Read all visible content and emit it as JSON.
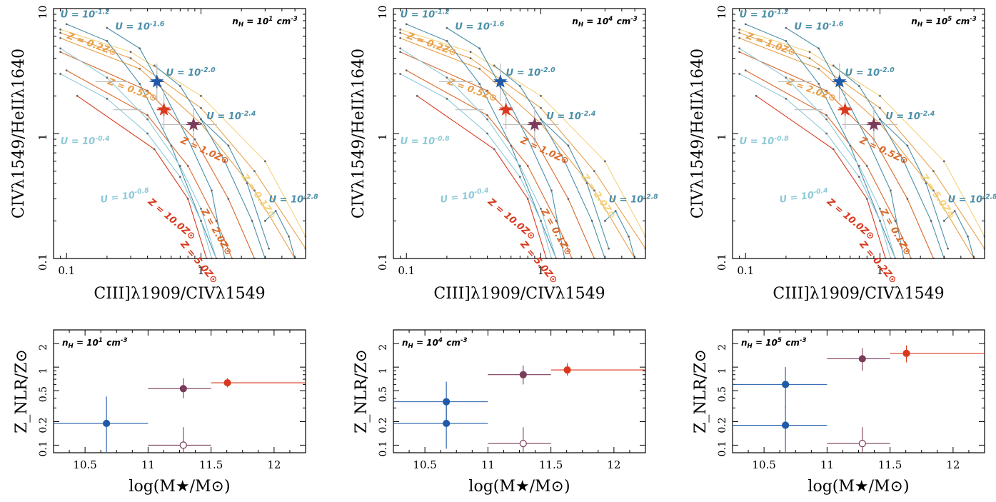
{
  "colors": {
    "blue": "#1f5aa8",
    "red": "#d93a1f",
    "purple": "#7a3c5a",
    "teal": "#4a8fa8",
    "lightteal": "#8ec9d8",
    "orange": "#e8a04a",
    "yellow": "#f5d27a",
    "darkorange": "#d8692a"
  },
  "chart_data": [
    {
      "type": "line",
      "panel": "top-left",
      "density_label": "n_H = 10^1 cm^-3",
      "xlabel": "CIII]λ1909/CIVλ1549",
      "ylabel": "CIVλ1549/HeIIλ1640",
      "xscale": "log",
      "yscale": "log",
      "xlim": [
        0.08,
        6
      ],
      "ylim": [
        0.1,
        10
      ],
      "xticks": [
        "0.1",
        "1"
      ],
      "yticks": [
        "0.1",
        "1",
        "10"
      ],
      "annotations": [
        "U = 10^-1.2",
        "U = 10^-1.6",
        "U = 10^-2.0",
        "U = 10^-2.4",
        "U = 10^-0.4",
        "U = 10^-0.8",
        "U = 10^-2.8",
        "Z = 0.2Z⊙",
        "Z = 0.5Z⊙",
        "Z = 1.0Z⊙",
        "Z = 0.1Z⊙",
        "Z = 10.0Z⊙",
        "Z = 5.0Z⊙",
        "Z = 2.0Z⊙"
      ],
      "points": [
        {
          "name": "blue",
          "x": 0.47,
          "y": 2.6
        },
        {
          "name": "red",
          "x": 0.53,
          "y": 1.55
        },
        {
          "name": "purple",
          "x": 0.88,
          "y": 1.18
        }
      ]
    },
    {
      "type": "line",
      "panel": "top-middle",
      "density_label": "n_H = 10^4 cm^-3",
      "xlabel": "CIII]λ1909/CIVλ1549",
      "ylabel": "CIVλ1549/HeIIλ1640",
      "xscale": "log",
      "yscale": "log",
      "xlim": [
        0.08,
        6
      ],
      "ylim": [
        0.1,
        10
      ],
      "xticks": [
        "0.1",
        "1"
      ],
      "yticks": [
        "0.1",
        "1",
        "10"
      ],
      "annotations": [
        "U = 10^-1.2",
        "U = 10^-1.6",
        "U = 10^-2.0",
        "U = 10^-2.4",
        "U = 10^-0.8",
        "U = 10^-0.4",
        "U = 10^-2.8",
        "Z = 0.2Z⊙",
        "Z = 0.5Z⊙",
        "Z = 1.0Z⊙",
        "Z = 2.0Z⊙",
        "Z = 10.0Z⊙",
        "Z = 5.0Z⊙",
        "Z = 0.1Z⊙"
      ],
      "points": [
        {
          "name": "blue",
          "x": 0.5,
          "y": 2.6
        },
        {
          "name": "red",
          "x": 0.55,
          "y": 1.55
        },
        {
          "name": "purple",
          "x": 0.9,
          "y": 1.18
        }
      ]
    },
    {
      "type": "line",
      "panel": "top-right",
      "density_label": "n_H = 10^5 cm^-3",
      "xlabel": "CIII]λ1909/CIVλ1549",
      "ylabel": "CIVλ1549/HeIIλ1640",
      "xscale": "log",
      "yscale": "log",
      "xlim": [
        0.08,
        6
      ],
      "ylim": [
        0.1,
        10
      ],
      "xticks": [
        "0.1",
        "1"
      ],
      "yticks": [
        "0.1",
        "1",
        "10"
      ],
      "annotations": [
        "U = 10^-1.2",
        "U = 10^-1.6",
        "U = 10^-2.0",
        "U = 10^-2.4",
        "U = 10^-0.8",
        "U = 10^-0.4",
        "U = 10^-2.8",
        "Z = 1.0Z⊙",
        "Z = 2.0Z⊙",
        "Z = 0.5Z⊙",
        "Z = 5.0Z⊙",
        "Z = 10.0Z⊙",
        "Z = 0.2Z⊙",
        "Z = 0.1Z⊙"
      ],
      "points": [
        {
          "name": "blue",
          "x": 0.5,
          "y": 2.6
        },
        {
          "name": "red",
          "x": 0.55,
          "y": 1.55
        },
        {
          "name": "purple",
          "x": 0.9,
          "y": 1.18
        }
      ]
    },
    {
      "type": "scatter",
      "panel": "bottom-left",
      "density_label": "n_H = 10^1 cm^-3",
      "xlabel": "log(M★/M⊙)",
      "ylabel": "Z_NLR/Z⊙",
      "yscale": "log",
      "xlim": [
        10.25,
        12.25
      ],
      "ylim": [
        0.08,
        3
      ],
      "xticks": [
        "10.5",
        "11",
        "11.5",
        "12"
      ],
      "yticks": [
        "0.1",
        "0.2",
        "0.5",
        "1",
        "2"
      ],
      "points": [
        {
          "name": "blue",
          "x": 10.67,
          "y": 0.19,
          "xerr": [
            10.25,
            11.0
          ],
          "yerr": [
            0.08,
            0.42
          ],
          "filled": true
        },
        {
          "name": "purple",
          "x": 11.28,
          "y": 0.53,
          "xerr": [
            11.0,
            11.5
          ],
          "yerr": [
            0.4,
            0.72
          ],
          "filled": true
        },
        {
          "name": "purple-open",
          "x": 11.28,
          "y": 0.1,
          "xerr": [
            11.0,
            11.5
          ],
          "yerr": [
            0.08,
            0.17
          ],
          "filled": false
        },
        {
          "name": "red",
          "x": 11.63,
          "y": 0.63,
          "xerr": [
            11.5,
            12.25
          ],
          "yerr": [
            0.55,
            0.72
          ],
          "filled": true
        }
      ]
    },
    {
      "type": "scatter",
      "panel": "bottom-middle",
      "density_label": "n_H = 10^4 cm^-3",
      "xlabel": "log(M★/M⊙)",
      "ylabel": "Z_NLR/Z⊙",
      "yscale": "log",
      "xlim": [
        10.25,
        12.25
      ],
      "ylim": [
        0.08,
        3
      ],
      "xticks": [
        "10.5",
        "11",
        "11.5",
        "12"
      ],
      "yticks": [
        "0.1",
        "0.2",
        "0.5",
        "1",
        "2"
      ],
      "points": [
        {
          "name": "blue-upper",
          "x": 10.67,
          "y": 0.36,
          "xerr": [
            10.25,
            11.0
          ],
          "yerr": [
            0.18,
            0.65
          ],
          "filled": true
        },
        {
          "name": "blue-lower",
          "x": 10.67,
          "y": 0.19,
          "xerr": [
            10.25,
            11.0
          ],
          "yerr": [
            0.09,
            0.34
          ],
          "filled": true
        },
        {
          "name": "purple",
          "x": 11.28,
          "y": 0.8,
          "xerr": [
            11.0,
            11.5
          ],
          "yerr": [
            0.6,
            1.05
          ],
          "filled": true
        },
        {
          "name": "purple-open",
          "x": 11.28,
          "y": 0.105,
          "xerr": [
            11.0,
            11.5
          ],
          "yerr": [
            0.08,
            0.17
          ],
          "filled": false
        },
        {
          "name": "red",
          "x": 11.63,
          "y": 0.92,
          "xerr": [
            11.5,
            12.25
          ],
          "yerr": [
            0.78,
            1.12
          ],
          "filled": true
        }
      ]
    },
    {
      "type": "scatter",
      "panel": "bottom-right",
      "density_label": "n_H = 10^5 cm^-3",
      "xlabel": "log(M★/M⊙)",
      "ylabel": "Z_NLR/Z⊙",
      "yscale": "log",
      "xlim": [
        10.25,
        12.25
      ],
      "ylim": [
        0.08,
        3
      ],
      "xticks": [
        "10.5",
        "11",
        "11.5",
        "12"
      ],
      "yticks": [
        "0.1",
        "0.2",
        "0.5",
        "1",
        "2"
      ],
      "points": [
        {
          "name": "blue-upper",
          "x": 10.67,
          "y": 0.6,
          "xerr": [
            10.25,
            11.0
          ],
          "yerr": [
            0.3,
            1.0
          ],
          "filled": true
        },
        {
          "name": "blue-lower",
          "x": 10.67,
          "y": 0.18,
          "xerr": [
            10.25,
            11.0
          ],
          "yerr": [
            0.08,
            0.32
          ],
          "filled": true
        },
        {
          "name": "purple",
          "x": 11.28,
          "y": 1.28,
          "xerr": [
            11.0,
            11.5
          ],
          "yerr": [
            0.9,
            1.75
          ],
          "filled": true
        },
        {
          "name": "purple-open",
          "x": 11.28,
          "y": 0.105,
          "xerr": [
            11.0,
            11.5
          ],
          "yerr": [
            0.08,
            0.17
          ],
          "filled": false
        },
        {
          "name": "red",
          "x": 11.63,
          "y": 1.5,
          "xerr": [
            11.5,
            12.25
          ],
          "yerr": [
            1.15,
            1.9
          ],
          "filled": true
        }
      ]
    }
  ]
}
